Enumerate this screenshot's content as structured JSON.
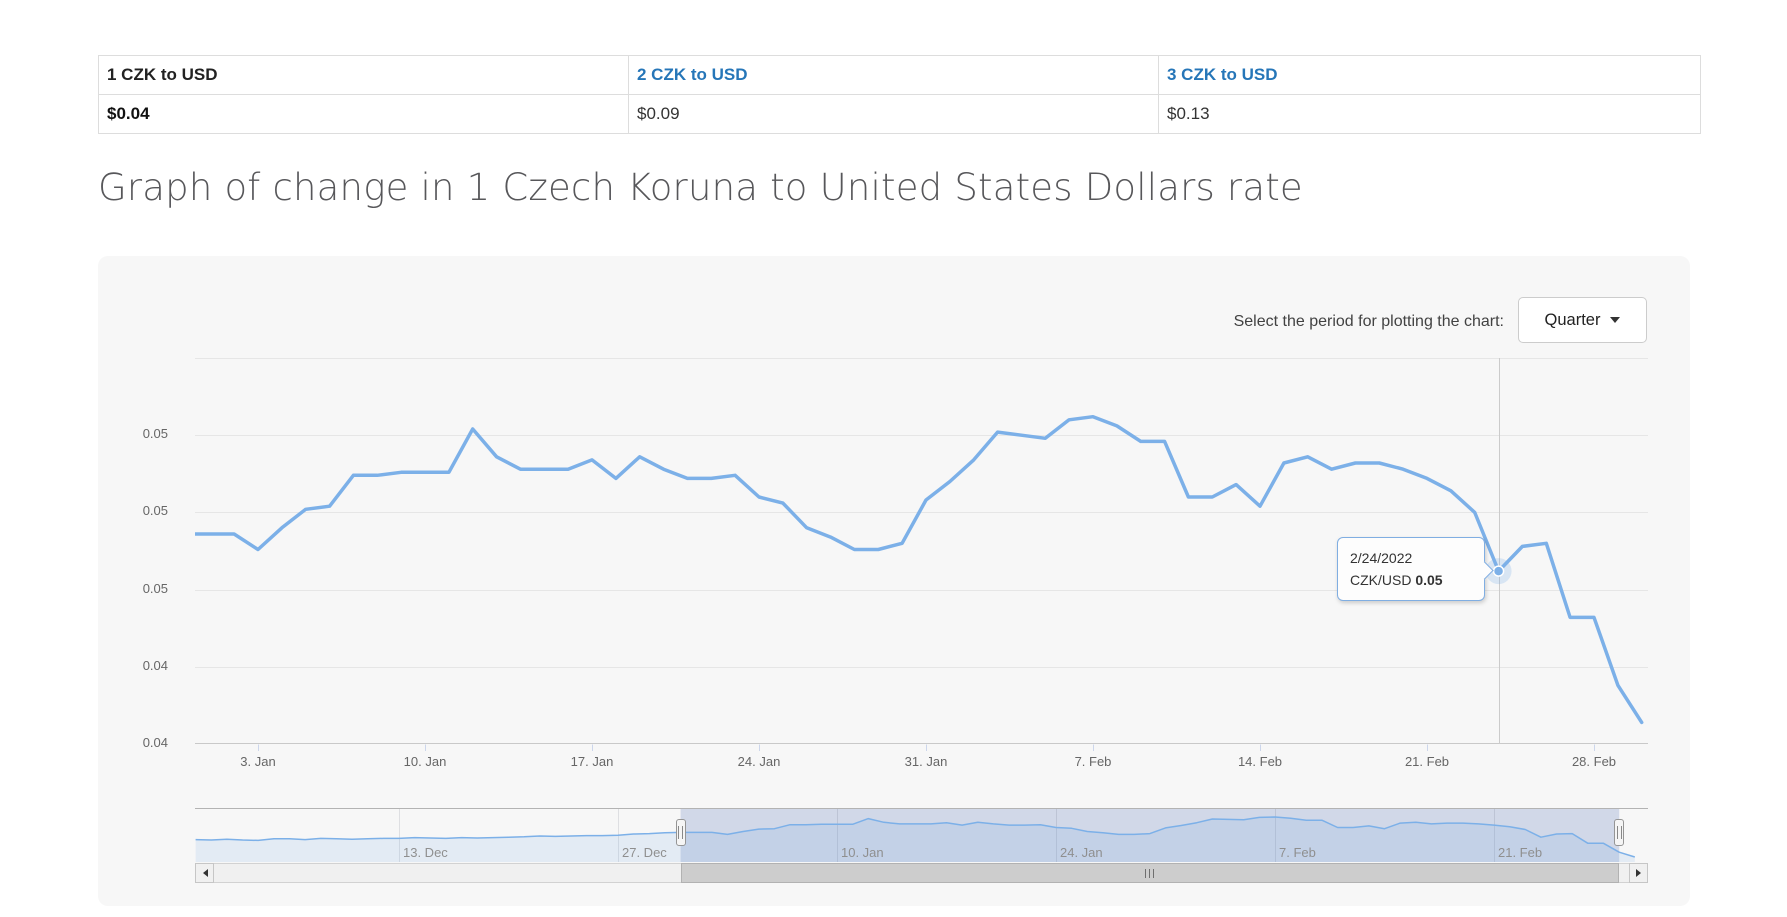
{
  "heading": "Graph of change in 1 Czech Koruna to United States Dollars rate",
  "conversion_table": {
    "link_color": "#2676b8",
    "cells": [
      {
        "label": "1 CZK to USD",
        "value": "$0.04",
        "link": false
      },
      {
        "label": "2 CZK to USD",
        "value": "$0.09",
        "link": true
      },
      {
        "label": "3 CZK to USD",
        "value": "$0.13",
        "link": true
      }
    ]
  },
  "period_selector": {
    "label": "Select the period for plotting the chart:",
    "value": "Quarter"
  },
  "tooltip": {
    "date": "2/24/2022",
    "pair": "CZK/USD",
    "value": "0.05"
  },
  "chart_data": {
    "type": "line",
    "title": "Graph of change in 1 Czech Koruna to United States Dollars rate",
    "xlabel": "",
    "ylabel": "",
    "grid": true,
    "y_axis": {
      "tick_labels": [
        "0.05",
        "0.05",
        "0.05",
        "0.04",
        "0.04"
      ],
      "tick_values": [
        0.0525,
        0.05,
        0.0475,
        0.045,
        0.0425
      ],
      "top_value": 0.055,
      "bottom_value": 0.0425
    },
    "x_axis": {
      "tick_labels": [
        "3. Jan",
        "10. Jan",
        "17. Jan",
        "24. Jan",
        "31. Jan",
        "7. Feb",
        "14. Feb",
        "21. Feb",
        "28. Feb"
      ],
      "tick_dates": [
        "1/3/2022",
        "1/10/2022",
        "1/17/2022",
        "1/24/2022",
        "1/31/2022",
        "2/7/2022",
        "2/14/2022",
        "2/21/2022",
        "2/28/2022"
      ]
    },
    "highlighted_point": {
      "date": "2/24/2022",
      "value": 0.0481,
      "display": "0.05"
    },
    "series": [
      {
        "name": "CZK/USD",
        "color": "#7cb0e8",
        "points": [
          [
            "12/31/2021",
            0.0493
          ],
          [
            "1/1/2022",
            0.0493
          ],
          [
            "1/2/2022",
            0.0493
          ],
          [
            "1/3/2022",
            0.0488
          ],
          [
            "1/4/2022",
            0.0495
          ],
          [
            "1/5/2022",
            0.0501
          ],
          [
            "1/6/2022",
            0.0502
          ],
          [
            "1/7/2022",
            0.0512
          ],
          [
            "1/8/2022",
            0.0512
          ],
          [
            "1/9/2022",
            0.0513
          ],
          [
            "1/10/2022",
            0.0513
          ],
          [
            "1/11/2022",
            0.0513
          ],
          [
            "1/12/2022",
            0.0527
          ],
          [
            "1/13/2022",
            0.0518
          ],
          [
            "1/14/2022",
            0.0514
          ],
          [
            "1/15/2022",
            0.0514
          ],
          [
            "1/16/2022",
            0.0514
          ],
          [
            "1/17/2022",
            0.0517
          ],
          [
            "1/18/2022",
            0.0511
          ],
          [
            "1/19/2022",
            0.0518
          ],
          [
            "1/20/2022",
            0.0514
          ],
          [
            "1/21/2022",
            0.0511
          ],
          [
            "1/22/2022",
            0.0511
          ],
          [
            "1/23/2022",
            0.0512
          ],
          [
            "1/24/2022",
            0.0505
          ],
          [
            "1/25/2022",
            0.0503
          ],
          [
            "1/26/2022",
            0.0495
          ],
          [
            "1/27/2022",
            0.0492
          ],
          [
            "1/28/2022",
            0.0488
          ],
          [
            "1/29/2022",
            0.0488
          ],
          [
            "1/30/2022",
            0.049
          ],
          [
            "1/31/2022",
            0.0504
          ],
          [
            "2/1/2022",
            0.051
          ],
          [
            "2/2/2022",
            0.0517
          ],
          [
            "2/3/2022",
            0.0526
          ],
          [
            "2/4/2022",
            0.0525
          ],
          [
            "2/5/2022",
            0.0524
          ],
          [
            "2/6/2022",
            0.053
          ],
          [
            "2/7/2022",
            0.0531
          ],
          [
            "2/8/2022",
            0.0528
          ],
          [
            "2/9/2022",
            0.0523
          ],
          [
            "2/10/2022",
            0.0523
          ],
          [
            "2/11/2022",
            0.0505
          ],
          [
            "2/12/2022",
            0.0505
          ],
          [
            "2/13/2022",
            0.0509
          ],
          [
            "2/14/2022",
            0.0502
          ],
          [
            "2/15/2022",
            0.0516
          ],
          [
            "2/16/2022",
            0.0518
          ],
          [
            "2/17/2022",
            0.0514
          ],
          [
            "2/18/2022",
            0.0516
          ],
          [
            "2/19/2022",
            0.0516
          ],
          [
            "2/20/2022",
            0.0514
          ],
          [
            "2/21/2022",
            0.0511
          ],
          [
            "2/22/2022",
            0.0507
          ],
          [
            "2/23/2022",
            0.05
          ],
          [
            "2/24/2022",
            0.0481
          ],
          [
            "2/25/2022",
            0.0489
          ],
          [
            "2/26/2022",
            0.049
          ],
          [
            "2/27/2022",
            0.0466
          ],
          [
            "2/28/2022",
            0.0466
          ],
          [
            "3/1/2022",
            0.0444
          ],
          [
            "3/2/2022",
            0.0432
          ]
        ]
      }
    ]
  },
  "navigator": {
    "x_axis": {
      "tick_labels": [
        "13. Dec",
        "27. Dec",
        "10. Jan",
        "24. Jan",
        "7. Feb",
        "21. Feb"
      ],
      "tick_dates": [
        "12/13/2021",
        "12/27/2021",
        "1/10/2022",
        "1/24/2022",
        "2/7/2022",
        "2/21/2022"
      ]
    },
    "range_start_date": "12/31/2021",
    "range_end_date": "3/1/2022",
    "pre_points": [
      [
        "11/30/2021",
        0.0475
      ],
      [
        "12/1/2021",
        0.0474
      ],
      [
        "12/2/2021",
        0.0476
      ],
      [
        "12/3/2021",
        0.0474
      ],
      [
        "12/4/2021",
        0.0473
      ],
      [
        "12/5/2021",
        0.0477
      ],
      [
        "12/6/2021",
        0.0477
      ],
      [
        "12/7/2021",
        0.0475
      ],
      [
        "12/8/2021",
        0.0478
      ],
      [
        "12/9/2021",
        0.0477
      ],
      [
        "12/10/2021",
        0.0476
      ],
      [
        "12/11/2021",
        0.0477
      ],
      [
        "12/12/2021",
        0.0478
      ],
      [
        "12/13/2021",
        0.0478
      ],
      [
        "12/14/2021",
        0.048
      ],
      [
        "12/15/2021",
        0.0479
      ],
      [
        "12/16/2021",
        0.0478
      ],
      [
        "12/17/2021",
        0.048
      ],
      [
        "12/18/2021",
        0.0479
      ],
      [
        "12/19/2021",
        0.048
      ],
      [
        "12/20/2021",
        0.0481
      ],
      [
        "12/21/2021",
        0.0482
      ],
      [
        "12/22/2021",
        0.0484
      ],
      [
        "12/23/2021",
        0.0483
      ],
      [
        "12/24/2021",
        0.0484
      ],
      [
        "12/25/2021",
        0.0485
      ],
      [
        "12/26/2021",
        0.0485
      ],
      [
        "12/27/2021",
        0.0486
      ],
      [
        "12/28/2021",
        0.0489
      ],
      [
        "12/29/2021",
        0.049
      ],
      [
        "12/30/2021",
        0.0492
      ]
    ]
  }
}
